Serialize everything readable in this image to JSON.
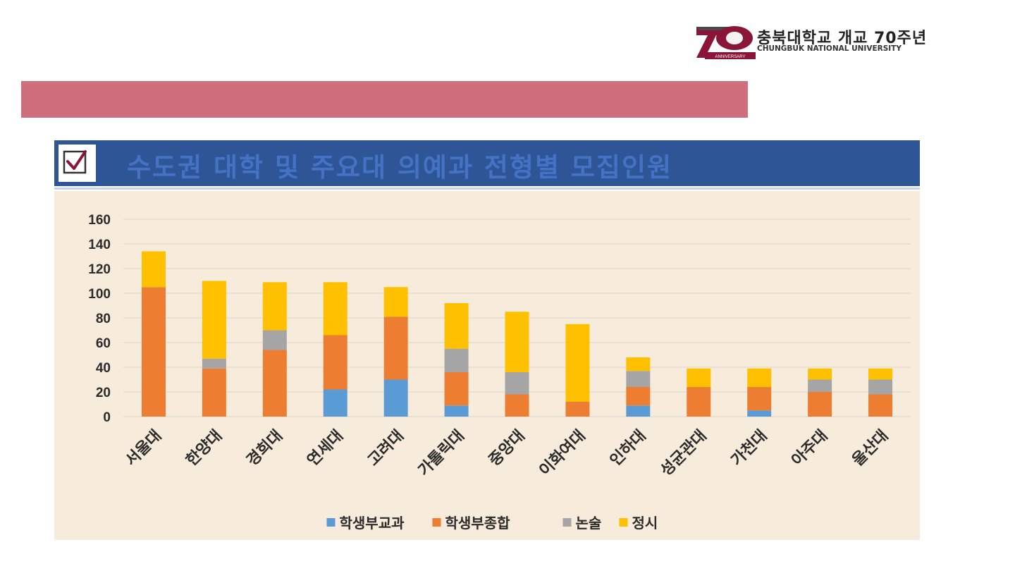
{
  "header": {
    "logo_title": "충북대학교 개교 70주년",
    "logo_subtitle": "CHUNGBUK NATIONAL UNIVERSITY",
    "logo_badge": "ANNIVERSARY"
  },
  "slide": {
    "title": "수도권 대학 및 주요대 의예과 전형별 모집인원"
  },
  "colors": {
    "pink_bar": "#d06e7d",
    "title_band": "#2e5596",
    "title_text": "#4473c5",
    "chart_bg": "#f7ecdb"
  },
  "chart_data": {
    "type": "bar",
    "stacked": true,
    "categories": [
      "서울대",
      "한양대",
      "경희대",
      "연세대",
      "고려대",
      "가톨릭대",
      "중앙대",
      "이화여대",
      "인하대",
      "성균관대",
      "가천대",
      "아주대",
      "울산대"
    ],
    "series": [
      {
        "name": "학생부교과",
        "color": "#5b9bd5",
        "values": [
          0,
          0,
          0,
          22,
          30,
          9,
          0,
          0,
          9,
          0,
          5,
          0,
          0
        ]
      },
      {
        "name": "학생부종합",
        "color": "#ed7d31",
        "values": [
          105,
          39,
          54,
          44,
          51,
          27,
          18,
          12,
          15,
          24,
          19,
          20,
          18
        ]
      },
      {
        "name": "논술",
        "color": "#a5a5a5",
        "values": [
          0,
          8,
          16,
          0,
          0,
          19,
          18,
          0,
          13,
          0,
          0,
          10,
          12
        ]
      },
      {
        "name": "정시",
        "color": "#ffc000",
        "values": [
          29,
          63,
          39,
          43,
          24,
          37,
          49,
          63,
          11,
          15,
          15,
          9,
          9
        ]
      }
    ],
    "yticks": [
      "0",
      "20",
      "40",
      "60",
      "80",
      "100",
      "120",
      "140",
      "160"
    ],
    "ylim": [
      0,
      160
    ],
    "grid": true,
    "legend_position": "bottom"
  }
}
